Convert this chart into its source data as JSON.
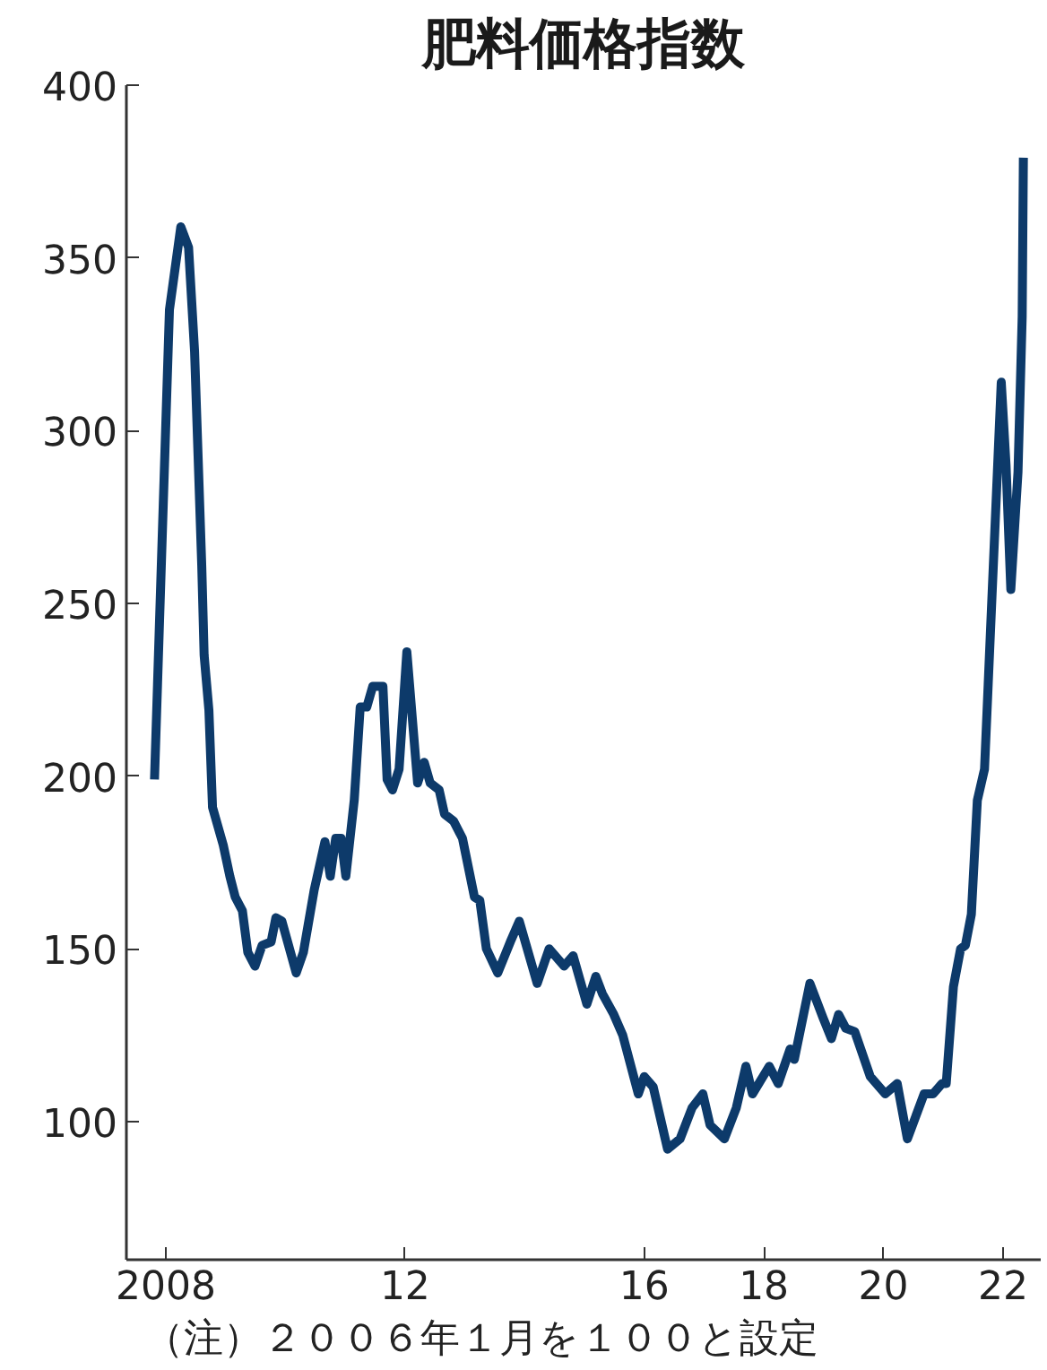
{
  "chart_data": {
    "type": "line",
    "title": "肥料価格指数",
    "x": [
      2007.81,
      2008.06,
      2008.25,
      2008.38,
      2008.48,
      2008.6,
      2008.64,
      2008.72,
      2008.78,
      2008.96,
      2009.07,
      2009.16,
      2009.28,
      2009.37,
      2009.49,
      2009.61,
      2009.76,
      2009.84,
      2009.94,
      2010.18,
      2010.3,
      2010.48,
      2010.66,
      2010.75,
      2010.84,
      2010.93,
      2011.01,
      2011.15,
      2011.25,
      2011.36,
      2011.46,
      2011.63,
      2011.7,
      2011.79,
      2011.9,
      2012.03,
      2012.21,
      2012.32,
      2012.42,
      2012.57,
      2012.66,
      2012.81,
      2012.96,
      2013.16,
      2013.25,
      2013.36,
      2013.55,
      2013.76,
      2013.91,
      2014.21,
      2014.41,
      2014.66,
      2014.81,
      2015.04,
      2015.19,
      2015.3,
      2015.49,
      2015.64,
      2015.9,
      2016.0,
      2016.15,
      2016.39,
      2016.6,
      2016.8,
      2016.98,
      2017.1,
      2017.34,
      2017.54,
      2017.7,
      2017.81,
      2018.09,
      2018.24,
      2018.44,
      2018.51,
      2018.77,
      2018.99,
      2019.13,
      2019.25,
      2019.37,
      2019.52,
      2019.78,
      2020.03,
      2020.23,
      2020.4,
      2020.68,
      2020.83,
      2020.98,
      2021.05,
      2021.17,
      2021.29,
      2021.37,
      2021.47,
      2021.57,
      2021.69,
      2021.97,
      2022.05,
      2022.13,
      2022.25,
      2022.32,
      2022.34
    ],
    "series": [
      {
        "color": "#0d3a6a",
        "values": [
          199,
          335,
          359,
          353,
          323,
          261,
          235,
          219,
          191,
          180,
          171,
          165,
          161,
          149,
          145,
          151,
          152,
          159,
          158,
          143,
          149,
          167,
          181,
          171,
          182,
          182,
          171,
          193,
          220,
          220,
          226,
          226,
          199,
          196,
          202,
          236,
          198,
          204,
          198,
          196,
          189,
          187,
          182,
          165,
          164,
          150,
          143,
          152,
          158,
          140,
          150,
          145,
          148,
          134,
          142,
          137,
          131,
          125,
          108,
          113,
          110,
          92,
          95,
          104,
          108,
          99,
          95,
          104,
          116,
          108,
          116,
          111,
          121,
          118,
          140,
          130,
          124,
          131,
          127,
          126,
          113,
          108,
          111,
          95,
          108,
          108,
          111,
          111,
          139,
          150,
          151,
          160,
          193,
          202,
          314,
          290,
          254,
          288,
          333,
          379
        ]
      }
    ],
    "xlim": [
      2007.34,
      2022.63
    ],
    "ylim": [
      60,
      400
    ],
    "xticks": [
      2008,
      {
        "value": 2012,
        "label": "12"
      },
      {
        "value": 2016,
        "label": "16"
      },
      {
        "value": 2018,
        "label": "18"
      },
      {
        "value": 2020,
        "label": "20"
      },
      {
        "value": 2022,
        "label": "22"
      }
    ],
    "yticks": [
      100,
      150,
      200,
      250,
      300,
      350,
      400
    ],
    "grid": false,
    "line_style": "solid",
    "marker": "none",
    "annotations": [
      "（注）２００６年１月を１００と設定"
    ]
  }
}
